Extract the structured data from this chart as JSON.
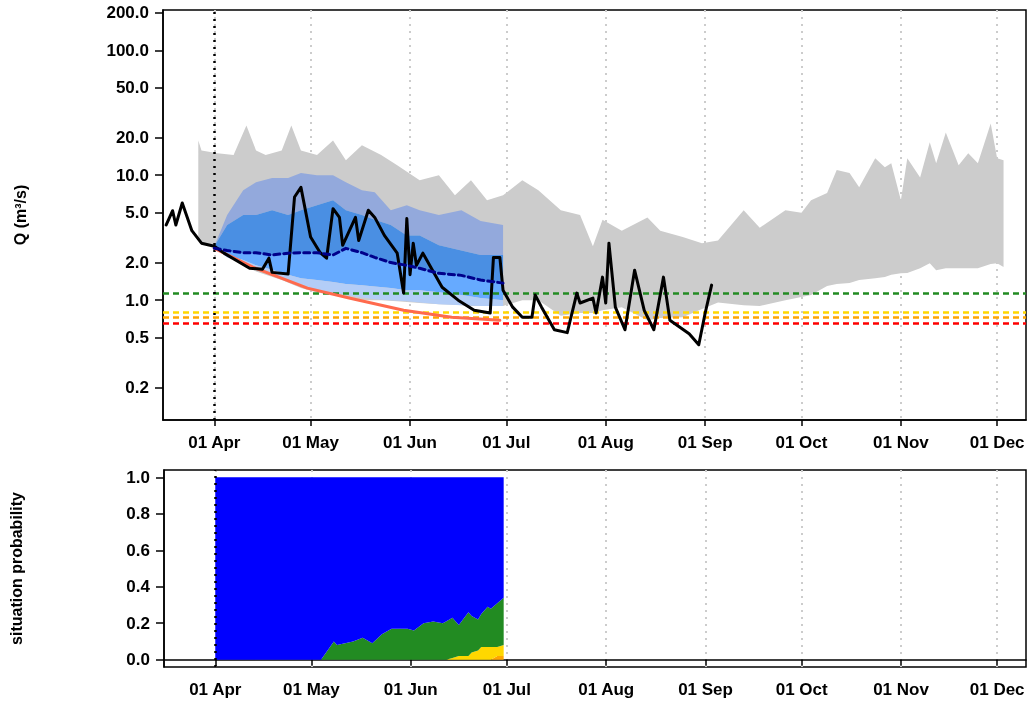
{
  "chart_data": [
    {
      "type": "line",
      "ylabel": "Q (m³/s)",
      "log": "y",
      "grid": "x",
      "marker": "none",
      "xlim": [
        "--03-16",
        "--12-10"
      ],
      "ylim": [
        0.11,
        210
      ],
      "xticks": [
        {
          "value": "--04-01",
          "label": "01 Apr"
        },
        {
          "value": "--05-01",
          "label": "01 May"
        },
        {
          "value": "--06-01",
          "label": "01 Jun"
        },
        {
          "value": "--07-01",
          "label": "01 Jul"
        },
        {
          "value": "--08-01",
          "label": "01 Aug"
        },
        {
          "value": "--09-01",
          "label": "01 Sep"
        },
        {
          "value": "--10-01",
          "label": "01 Oct"
        },
        {
          "value": "--11-01",
          "label": "01 Nov"
        },
        {
          "value": "--12-01",
          "label": "01 Dec"
        }
      ],
      "yticks": [
        0.2,
        0.5,
        {
          "value": 1,
          "label": "1.0"
        },
        {
          "value": 2,
          "label": "2.0"
        },
        {
          "value": 5,
          "label": "5.0"
        },
        {
          "value": 10,
          "label": "10.0"
        },
        {
          "value": 20,
          "label": "20.0"
        },
        {
          "value": 50,
          "label": "50.0"
        },
        {
          "value": 100,
          "label": "100.0"
        },
        {
          "value": 200,
          "label": "200.0"
        }
      ],
      "series": [
        {
          "type": "line",
          "color": "#cccccc",
          "values": [
            null,
            null,
            null,
            null,
            null,
            null,
            null,
            null,
            null,
            null,
            null,
            null,
            null,
            null,
            null,
            null,
            null,
            null,
            null,
            null,
            null,
            null,
            null,
            null,
            null,
            null,
            null,
            null,
            null,
            null,
            null,
            null,
            null,
            null,
            null,
            null,
            null,
            null,
            null,
            null,
            null,
            null,
            null,
            null,
            null,
            null,
            null,
            null,
            null,
            null,
            null,
            null,
            null,
            null,
            null,
            null,
            null,
            null
          ],
          "x": [
            "--03-27",
            "--03-28",
            "--04-02",
            "--04-07",
            "--04-11",
            "--04-14",
            "--04-17",
            "--04-22",
            "--04-25",
            "--04-28",
            "--05-03",
            "--05-08",
            "--05-12",
            "--05-17",
            "--05-23",
            "--05-28",
            "--06-04",
            "--06-10",
            "--06-15",
            "--06-20",
            "--06-25",
            "--06-30",
            "--07-06",
            "--07-11",
            "--07-18",
            "--07-24",
            "--07-28",
            "--07-31",
            "--08-06",
            "--08-14",
            "--08-18",
            "--08-25",
            "--08-31",
            "--09-05",
            "--09-13",
            "--09-18",
            "--09-26",
            "--10-01",
            "--10-04",
            "--10-09",
            "--10-12",
            "--10-16",
            "--10-19",
            "--10-24",
            "--10-27",
            "--10-29",
            "--11-01",
            "--11-03",
            "--11-07",
            "--11-10",
            "--11-12",
            "--11-15",
            "--11-19",
            "--11-22",
            "--11-25",
            "--11-29",
            "--12-01",
            "--12-03"
          ],
          "upper": [
            19,
            15.8,
            15,
            14.5,
            25,
            15.8,
            14.5,
            15.8,
            25,
            15.8,
            14.5,
            19,
            13.2,
            17.4,
            14.5,
            12,
            9.1,
            10,
            6.9,
            9.1,
            6.3,
            6.9,
            9.1,
            7.6,
            5.25,
            4.8,
            2.7,
            4.4,
            3.6,
            4.6,
            3.6,
            3.2,
            2.86,
            3.0,
            5.25,
            3.8,
            5.25,
            5.0,
            6.3,
            7.2,
            11,
            10.4,
            8.0,
            13.7,
            11.6,
            12.5,
            6.3,
            13.7,
            9.6,
            18.4,
            12.5,
            22,
            12,
            15,
            12.5,
            26,
            13.7,
            13.2
          ],
          "lower": [
            3.0,
            2.9,
            2.6,
            2.2,
            1.9,
            1.7,
            1.6,
            1.45,
            1.35,
            1.25,
            1.15,
            1.1,
            1.05,
            1.0,
            1.0,
            0.98,
            0.95,
            0.93,
            0.92,
            0.9,
            0.9,
            0.9,
            1.0,
            1.0,
            0.75,
            0.79,
            0.79,
            0.83,
            0.88,
            0.69,
            0.72,
            0.73,
            0.85,
            0.96,
            0.91,
            0.9,
            1.0,
            1.06,
            1.1,
            1.3,
            1.35,
            1.37,
            1.45,
            1.5,
            1.53,
            1.6,
            1.64,
            1.65,
            1.8,
            1.98,
            1.74,
            1.8,
            1.8,
            1.8,
            1.8,
            1.95,
            1.98,
            1.84
          ]
        },
        {
          "type": "line",
          "color": "#93a9dc",
          "values": [
            null,
            null,
            null,
            null,
            null,
            null,
            null,
            null,
            null,
            null,
            null,
            null,
            null,
            null,
            null,
            null,
            null,
            null,
            null
          ],
          "x": [
            "--04-01",
            "--04-05",
            "--04-10",
            "--04-14",
            "--04-19",
            "--04-24",
            "--04-28",
            "--05-03",
            "--05-08",
            "--05-12",
            "--05-17",
            "--05-21",
            "--05-26",
            "--05-31",
            "--06-04",
            "--06-10",
            "--06-17",
            "--06-23",
            "--06-30"
          ],
          "upper": [
            2.7,
            4.8,
            7.6,
            8.8,
            9.5,
            9.5,
            10.4,
            10,
            10,
            8.8,
            7.6,
            7.3,
            5.25,
            5.75,
            5.25,
            4.8,
            5.25,
            4.3,
            4.0
          ],
          "lower": [
            2.7,
            4.0,
            4.8,
            4.8,
            5.25,
            4.8,
            5.25,
            5.75,
            6.3,
            5.25,
            4.8,
            4.4,
            4.0,
            3.3,
            3.3,
            2.75,
            2.5,
            2.3,
            2.3
          ]
        },
        {
          "type": "line",
          "color": "#4a8fe3",
          "values": [
            null,
            null,
            null,
            null,
            null,
            null,
            null,
            null,
            null,
            null,
            null,
            null,
            null,
            null,
            null,
            null,
            null,
            null,
            null
          ],
          "x": [
            "--04-01",
            "--04-05",
            "--04-10",
            "--04-14",
            "--04-19",
            "--04-24",
            "--04-28",
            "--05-03",
            "--05-08",
            "--05-12",
            "--05-17",
            "--05-21",
            "--05-26",
            "--05-31",
            "--06-04",
            "--06-10",
            "--06-17",
            "--06-23",
            "--06-30"
          ],
          "upper": [
            2.7,
            4.0,
            4.8,
            4.8,
            5.25,
            4.8,
            5.25,
            5.75,
            6.3,
            5.25,
            4.8,
            4.4,
            4.0,
            3.3,
            3.3,
            2.75,
            2.5,
            2.3,
            2.3
          ],
          "lower": [
            2.6,
            2.5,
            2.4,
            2.4,
            2.3,
            2.38,
            2.4,
            2.4,
            2.3,
            2.6,
            2.4,
            2.2,
            2.0,
            1.9,
            1.8,
            1.64,
            1.58,
            1.45,
            1.37
          ]
        },
        {
          "type": "line",
          "color": "#66aaff",
          "values": [
            null,
            null,
            null,
            null,
            null,
            null,
            null,
            null,
            null,
            null,
            null,
            null,
            null,
            null,
            null,
            null,
            null,
            null,
            null
          ],
          "x": [
            "--04-01",
            "--04-05",
            "--04-10",
            "--04-14",
            "--04-19",
            "--04-24",
            "--04-28",
            "--05-03",
            "--05-08",
            "--05-12",
            "--05-17",
            "--05-21",
            "--05-26",
            "--05-31",
            "--06-04",
            "--06-10",
            "--06-17",
            "--06-23",
            "--06-30"
          ],
          "upper": [
            2.6,
            2.5,
            2.4,
            2.4,
            2.3,
            2.38,
            2.4,
            2.4,
            2.3,
            2.6,
            2.4,
            2.2,
            2.0,
            1.9,
            1.8,
            1.64,
            1.58,
            1.45,
            1.37
          ],
          "lower": [
            2.6,
            2.3,
            2.1,
            1.9,
            1.75,
            1.6,
            1.5,
            1.45,
            1.4,
            1.35,
            1.32,
            1.29,
            1.25,
            1.2,
            1.2,
            1.16,
            1.1,
            1.04,
            1.0
          ]
        },
        {
          "type": "line",
          "color": "#b3cdf7",
          "values": [
            null,
            null,
            null,
            null,
            null,
            null,
            null,
            null,
            null,
            null,
            null,
            null,
            null,
            null,
            null,
            null,
            null,
            null,
            null
          ],
          "x": [
            "--04-01",
            "--04-05",
            "--04-10",
            "--04-14",
            "--04-19",
            "--04-24",
            "--04-28",
            "--05-03",
            "--05-08",
            "--05-12",
            "--05-17",
            "--05-21",
            "--05-26",
            "--05-31",
            "--06-04",
            "--06-10",
            "--06-17",
            "--06-23",
            "--06-30"
          ],
          "upper": [
            2.6,
            2.3,
            2.1,
            1.9,
            1.75,
            1.6,
            1.5,
            1.45,
            1.4,
            1.35,
            1.32,
            1.29,
            1.25,
            1.2,
            1.2,
            1.16,
            1.1,
            1.04,
            1.0
          ],
          "lower": [
            2.6,
            2.2,
            2.0,
            1.8,
            1.6,
            1.45,
            1.35,
            1.2,
            1.15,
            1.1,
            1.05,
            1.02,
            1.0,
            0.98,
            0.96,
            0.93,
            0.91,
            0.9,
            0.9
          ]
        },
        {
          "type": "line",
          "color": "#00008b",
          "line_style": "dashed",
          "x": [
            "--04-01",
            "--04-05",
            "--04-10",
            "--04-14",
            "--04-19",
            "--04-24",
            "--04-28",
            "--05-03",
            "--05-08",
            "--05-12",
            "--05-17",
            "--05-21",
            "--05-26",
            "--05-31",
            "--06-04",
            "--06-10",
            "--06-17",
            "--06-23",
            "--06-30"
          ],
          "values": [
            2.6,
            2.5,
            2.4,
            2.4,
            2.3,
            2.38,
            2.4,
            2.4,
            2.3,
            2.6,
            2.4,
            2.2,
            2.0,
            1.9,
            1.8,
            1.64,
            1.58,
            1.45,
            1.37
          ]
        },
        {
          "type": "line",
          "color": "#ff6a4d",
          "x": [
            "--04-01",
            "--04-13",
            "--04-30",
            "--05-13",
            "--05-30",
            "--06-14",
            "--06-29"
          ],
          "values": [
            2.6,
            1.84,
            1.25,
            1.04,
            0.83,
            0.73,
            0.69
          ]
        },
        {
          "type": "line",
          "color": "#000000",
          "x": [
            "--03-17",
            "--03-19",
            "--03-20",
            "--03-22",
            "--03-25",
            "--03-28",
            "--04-01",
            "--04-04",
            "--04-12",
            "--04-16",
            "--04-18",
            "--04-19",
            "--04-24",
            "--04-26",
            "--04-28",
            "--05-01",
            "--05-04",
            "--05-06",
            "--05-08",
            "--05-10",
            "--05-11",
            "--05-15",
            "--05-16",
            "--05-19",
            "--05-21",
            "--05-24",
            "--05-28",
            "--05-30",
            "--05-31",
            "--06-01",
            "--06-02",
            "--06-03",
            "--06-05",
            "--06-08",
            "--06-11",
            "--06-16",
            "--06-21",
            "--06-26",
            "--06-27",
            "--06-29",
            "--06-30",
            "--07-03",
            "--07-06",
            "--07-09",
            "--07-10",
            "--07-12",
            "--07-16",
            "--07-20",
            "--07-23",
            "--07-24",
            "--07-28",
            "--07-29",
            "--07-31",
            "--08-01",
            "--08-02",
            "--08-04",
            "--08-07",
            "--08-10",
            "--08-13",
            "--08-16",
            "--08-19",
            "--08-21",
            "--08-27",
            "--08-30",
            "--09-01",
            "--09-03"
          ],
          "values": [
            4.0,
            5.2,
            4.0,
            6.0,
            3.6,
            2.86,
            2.7,
            2.38,
            1.8,
            1.77,
            2.17,
            1.67,
            1.62,
            6.7,
            8.0,
            3.2,
            2.4,
            2.17,
            5.4,
            4.6,
            2.75,
            4.6,
            3.0,
            5.25,
            4.6,
            3.3,
            2.38,
            1.14,
            4.5,
            1.6,
            2.86,
            1.9,
            2.38,
            1.74,
            1.27,
            1.0,
            0.83,
            0.79,
            2.2,
            2.2,
            1.2,
            0.88,
            0.73,
            0.73,
            1.1,
            0.88,
            0.58,
            0.55,
            1.14,
            0.95,
            1.04,
            0.79,
            1.53,
            0.95,
            2.86,
            0.88,
            0.58,
            1.74,
            0.83,
            0.58,
            1.53,
            0.69,
            0.54,
            0.44,
            0.79,
            1.32
          ]
        }
      ],
      "ref_lines": [
        {
          "axis": "y",
          "value": 1.14,
          "color": "#228b22",
          "line_style": "dashed"
        },
        {
          "axis": "y",
          "value": 0.8,
          "color": "#ffd700",
          "line_style": "dashed"
        },
        {
          "axis": "y",
          "value": 0.73,
          "color": "#ffa500",
          "line_style": "dashed"
        },
        {
          "axis": "y",
          "value": 0.65,
          "color": "#ff0000",
          "line_style": "dashed"
        },
        {
          "axis": "x",
          "value": "--04-01",
          "color": "#000000",
          "line_style": "dotted"
        }
      ]
    },
    {
      "type": "area",
      "stacked": true,
      "ylabel": "situation probability",
      "grid": "x",
      "marker": "none",
      "xlim": [
        "--03-16",
        "--12-10"
      ],
      "ylim": [
        -0.04,
        1.04
      ],
      "xticks": [
        {
          "value": "--04-01",
          "label": "01 Apr"
        },
        {
          "value": "--05-01",
          "label": "01 May"
        },
        {
          "value": "--06-01",
          "label": "01 Jun"
        },
        {
          "value": "--07-01",
          "label": "01 Jul"
        },
        {
          "value": "--08-01",
          "label": "01 Aug"
        },
        {
          "value": "--09-01",
          "label": "01 Sep"
        },
        {
          "value": "--10-01",
          "label": "01 Oct"
        },
        {
          "value": "--11-01",
          "label": "01 Nov"
        },
        {
          "value": "--12-01",
          "label": "01 Dec"
        }
      ],
      "yticks": [
        {
          "value": 0,
          "label": "0.0"
        },
        0.2,
        0.4,
        0.6,
        0.8,
        {
          "value": 1,
          "label": "1.0"
        }
      ],
      "x": [
        "--04-01",
        "--05-04",
        "--05-08",
        "--05-09",
        "--05-14",
        "--05-17",
        "--05-20",
        "--05-23",
        "--05-26",
        "--05-29",
        "--05-31",
        "--06-02",
        "--06-05",
        "--06-08",
        "--06-11",
        "--06-12",
        "--06-14",
        "--06-16",
        "--06-19",
        "--06-20",
        "--06-22",
        "--06-23",
        "--06-25",
        "--06-26",
        "--06-28",
        "--06-30"
      ],
      "series": [
        {
          "color": "#ffa500",
          "values": [
            0,
            0,
            0,
            0,
            0,
            0,
            0,
            0,
            0,
            0,
            0,
            0,
            0,
            0,
            0,
            0,
            0,
            0,
            0,
            0,
            0,
            0,
            0,
            0,
            0.02,
            0.02
          ]
        },
        {
          "color": "#ffd700",
          "values": [
            0,
            0,
            0,
            0,
            0,
            0,
            0,
            0,
            0,
            0,
            0,
            0,
            0,
            0,
            0,
            0,
            0.01,
            0.02,
            0.02,
            0.04,
            0.05,
            0.07,
            0.07,
            0.07,
            0.05,
            0.06
          ]
        },
        {
          "color": "#228b22",
          "values": [
            0,
            0,
            0.1,
            0.08,
            0.1,
            0.12,
            0.09,
            0.14,
            0.17,
            0.17,
            0.17,
            0.16,
            0.2,
            0.21,
            0.2,
            0.21,
            0.22,
            0.17,
            0.24,
            0.2,
            0.17,
            0.18,
            0.22,
            0.21,
            0.24,
            0.26
          ]
        },
        {
          "color": "#0000ff",
          "values": [
            1,
            1,
            0.9,
            0.92,
            0.9,
            0.88,
            0.91,
            0.86,
            0.83,
            0.83,
            0.83,
            0.84,
            0.8,
            0.79,
            0.8,
            0.79,
            0.77,
            0.81,
            0.74,
            0.76,
            0.78,
            0.75,
            0.71,
            0.72,
            0.69,
            0.66
          ]
        }
      ],
      "ref_lines": [
        {
          "axis": "x",
          "value": "--04-01",
          "color": "#000000",
          "line_style": "dotted"
        }
      ]
    }
  ]
}
